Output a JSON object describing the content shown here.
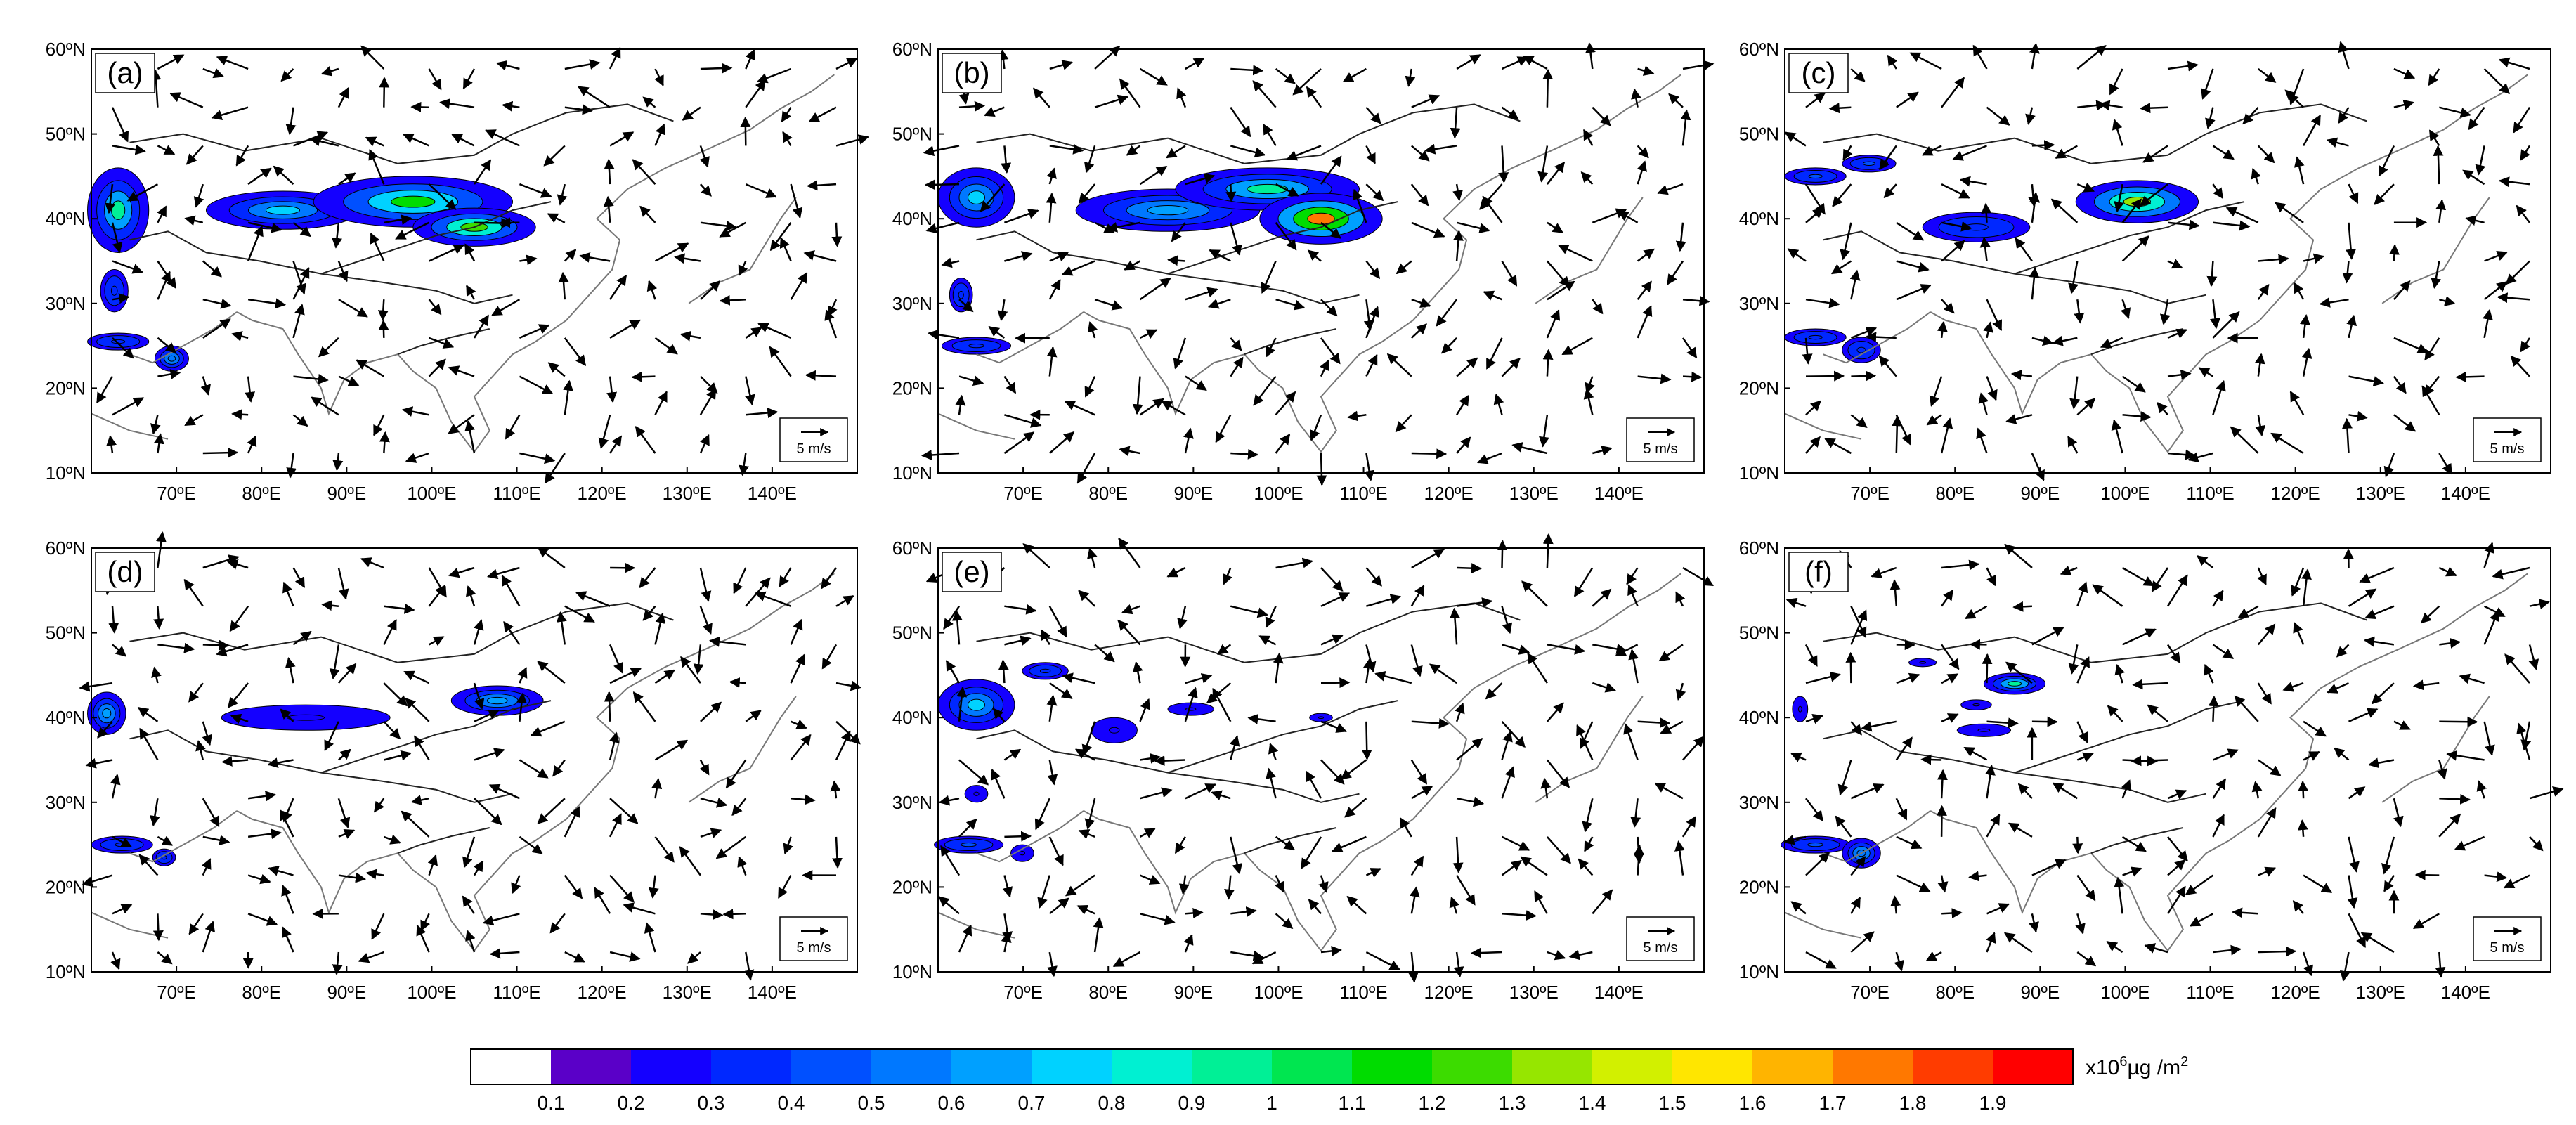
{
  "figure": {
    "panels": [
      {
        "label": "(a)",
        "ref_vector_label": "5 m/s"
      },
      {
        "label": "(b)",
        "ref_vector_label": "5 m/s"
      },
      {
        "label": "(c)",
        "ref_vector_label": "5 m/s"
      },
      {
        "label": "(d)",
        "ref_vector_label": "5 m/s"
      },
      {
        "label": "(e)",
        "ref_vector_label": "5 m/s"
      },
      {
        "label": "(f)",
        "ref_vector_label": "5 m/s"
      }
    ],
    "lat_ticks": [
      "10ºN",
      "20ºN",
      "30ºN",
      "40ºN",
      "50ºN",
      "60ºN"
    ],
    "lon_ticks": [
      "70ºE",
      "80ºE",
      "90ºE",
      "100ºE",
      "110ºE",
      "120ºE",
      "130ºE",
      "140ºE"
    ],
    "lon_tick_values": [
      70,
      80,
      90,
      100,
      110,
      120,
      130,
      140
    ],
    "lat_tick_values": [
      10,
      20,
      30,
      40,
      50,
      60
    ],
    "extent": {
      "lon_min": 60,
      "lon_max": 150,
      "lat_min": 10,
      "lat_max": 60
    }
  },
  "colorbar": {
    "tick_labels": [
      "0.1",
      "0.2",
      "0.3",
      "0.4",
      "0.5",
      "0.6",
      "0.7",
      "0.8",
      "0.9",
      "1",
      "1.1",
      "1.2",
      "1.3",
      "1.4",
      "1.5",
      "1.6",
      "1.7",
      "1.8",
      "1.9"
    ],
    "colors": [
      "#ffffff",
      "#5a00c8",
      "#1400ff",
      "#0028ff",
      "#0050ff",
      "#0078ff",
      "#00a0ff",
      "#00d2ff",
      "#00f0d2",
      "#00f096",
      "#00e650",
      "#00dc00",
      "#3cdc00",
      "#96e600",
      "#d2f000",
      "#ffe600",
      "#ffb400",
      "#ff7800",
      "#ff3c00",
      "#ff0000"
    ],
    "unit_prefix": "x10",
    "unit_exp": "6",
    "unit_suffix": "µg /m",
    "unit_sup2": "2"
  }
}
